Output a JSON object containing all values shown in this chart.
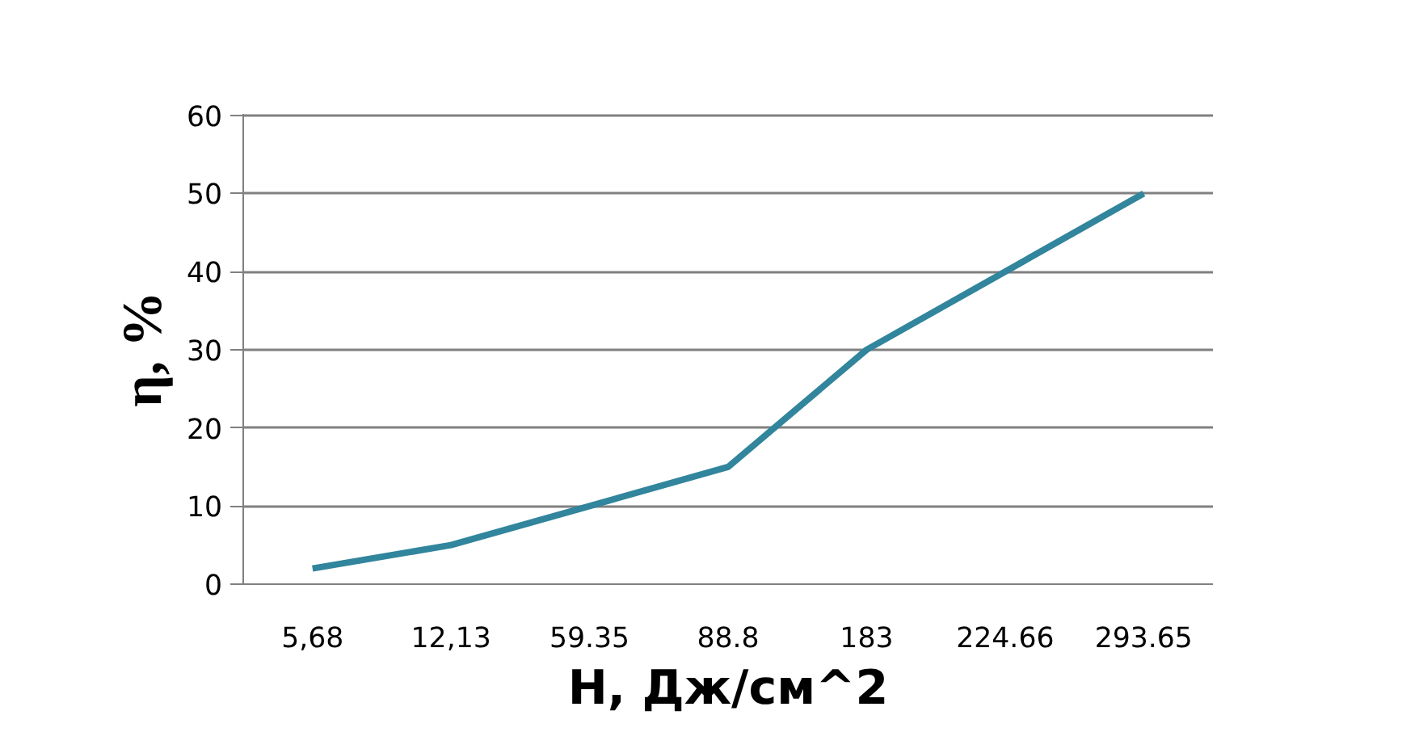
{
  "chart_data": {
    "type": "line",
    "xlabel": "Н, Дж/см^2",
    "ylabel": "η, %",
    "categories": [
      "5,68",
      "12,13",
      "59.35",
      "88.8",
      "183",
      "224.66",
      "293.65"
    ],
    "series": [
      {
        "color": "#31859c",
        "values": [
          2,
          5,
          10,
          15,
          30,
          40,
          50
        ]
      }
    ],
    "ylim": [
      0,
      60
    ],
    "yticks": [
      0,
      10,
      20,
      30,
      40,
      50,
      60
    ],
    "grid": "y",
    "marker": "none",
    "line_style": "solid"
  }
}
